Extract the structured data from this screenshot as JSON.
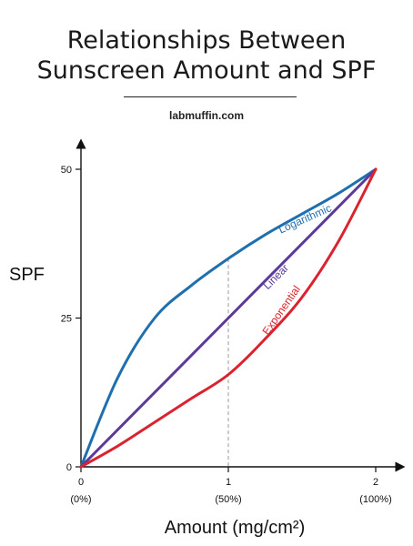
{
  "header": {
    "title_line1": "Relationships Between",
    "title_line2": "Sunscreen Amount and SPF",
    "site": "labmuffin.com"
  },
  "chart_data": {
    "type": "line",
    "title": "Relationships Between Sunscreen Amount and SPF",
    "xlabel": "Amount (mg/cm²)",
    "ylabel": "SPF",
    "xlim": [
      0,
      2
    ],
    "ylim": [
      0,
      50
    ],
    "x_ticks": [
      {
        "value": 0,
        "label": "0",
        "sublabel": "(0%)"
      },
      {
        "value": 1,
        "label": "1",
        "sublabel": "(50%)"
      },
      {
        "value": 2,
        "label": "2",
        "sublabel": "(100%)"
      }
    ],
    "y_ticks": [
      {
        "value": 0,
        "label": "0"
      },
      {
        "value": 25,
        "label": "25"
      },
      {
        "value": 50,
        "label": "50"
      }
    ],
    "reference_line": {
      "x": 1,
      "style": "dashed"
    },
    "series": [
      {
        "name": "Logarithmic",
        "color": "#1f6fae",
        "x": [
          0,
          0.25,
          0.5,
          0.75,
          1,
          1.25,
          1.5,
          1.75,
          2
        ],
        "y": [
          0,
          15,
          25,
          30.5,
          35,
          39,
          42.5,
          46,
          50
        ]
      },
      {
        "name": "Linear",
        "color": "#5b3a9a",
        "x": [
          0,
          1,
          2
        ],
        "y": [
          0,
          25,
          50
        ]
      },
      {
        "name": "Exponential",
        "color": "#d9232e",
        "x": [
          0,
          0.25,
          0.5,
          0.75,
          1,
          1.25,
          1.5,
          1.75,
          2
        ],
        "y": [
          0,
          3.5,
          7.5,
          11.5,
          15.5,
          21.5,
          28.5,
          38,
          50
        ]
      }
    ]
  }
}
